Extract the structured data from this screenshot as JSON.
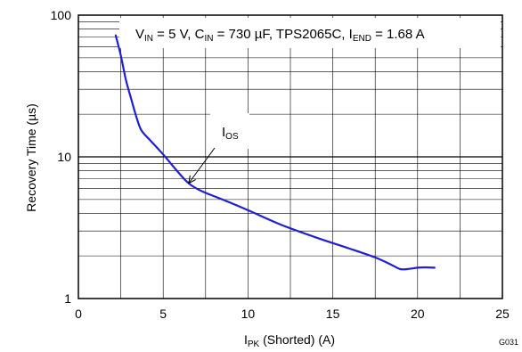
{
  "chart_data": {
    "type": "line",
    "title": "",
    "xlabel": {
      "main": "I",
      "sub": "PK",
      "rest": " (Shorted) (A)"
    },
    "ylabel": "Recovery Time (µs)",
    "xlim": [
      0,
      25
    ],
    "ylim": [
      1,
      100
    ],
    "y_scale": "log",
    "x_ticks": [
      0,
      5,
      10,
      15,
      20,
      25
    ],
    "y_ticks": [
      1,
      10,
      100
    ],
    "grid": true,
    "conditions": [
      {
        "main": "V",
        "sub": "IN",
        "rest": " = 5 V, "
      },
      {
        "main": "C",
        "sub": "IN",
        "rest": " = 730 µF,  TPS2065C, "
      },
      {
        "main": "I",
        "sub": "END",
        "rest": " = 1.68 A"
      }
    ],
    "annotation": {
      "main": "I",
      "sub": "OS"
    },
    "figure_code": "G031",
    "line_color": "#1f1fd6",
    "series": [
      {
        "x": [
          2.2,
          2.5,
          2.8,
          3.1,
          3.4,
          3.7,
          4.2,
          5.0,
          5.8,
          6.5,
          7.3,
          8.5,
          10.0,
          12.0,
          14.0,
          16.0,
          17.5,
          18.5,
          19.0,
          19.5,
          20.0,
          20.5,
          21.0
        ],
        "y": [
          72,
          52,
          35,
          26,
          19.5,
          15.5,
          13.2,
          10.4,
          8.0,
          6.5,
          5.7,
          5.0,
          4.2,
          3.3,
          2.7,
          2.25,
          1.95,
          1.72,
          1.61,
          1.62,
          1.65,
          1.66,
          1.65
        ]
      }
    ]
  }
}
